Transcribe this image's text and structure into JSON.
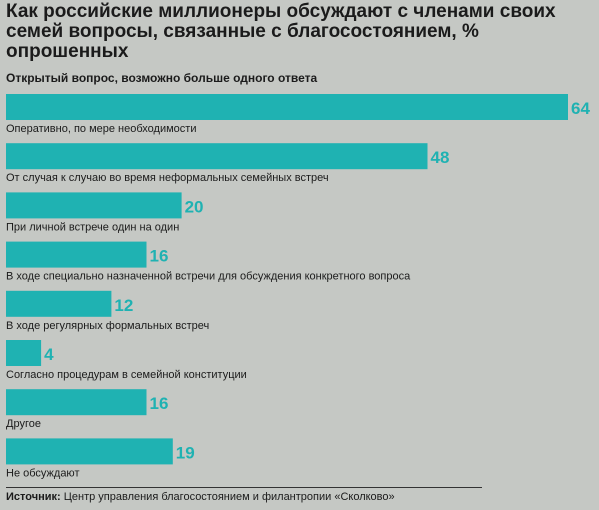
{
  "title": "Как российские миллионеры обсуждают с членами своих семей вопросы, связанные с благосостоянием, % опрошенных",
  "subtitle": "Открытый вопрос, возможно больше одного ответа",
  "source_label": "Источник:",
  "source_text": " Центр управления благосостоянием и филантропии «Сколково»",
  "colors": {
    "bar": "#1fb2b2",
    "background": "#c5c8c4"
  },
  "chart_data": {
    "type": "bar",
    "orientation": "horizontal",
    "title": "Как российские миллионеры обсуждают с членами своих семей вопросы, связанные с благосостоянием, % опрошенных",
    "subtitle": "Открытый вопрос, возможно больше одного ответа",
    "categories": [
      "Оперативно, по мере необходимости",
      "От случая к случаю во время неформальных семейных встреч",
      "При личной встрече один на один",
      "В ходе специально назначенной встречи для обсуждения конкретного вопроса",
      "В ходе регулярных формальных встреч",
      "Согласно процедурам в семейной конституции",
      "Другое",
      "Не обсуждают"
    ],
    "values": [
      64,
      48,
      20,
      16,
      12,
      4,
      16,
      19
    ],
    "data_labels": [
      "64",
      "48",
      "20",
      "16",
      "12",
      "4",
      "16",
      "19"
    ],
    "xlim": [
      0,
      64
    ],
    "grid": false,
    "legend": "none"
  }
}
